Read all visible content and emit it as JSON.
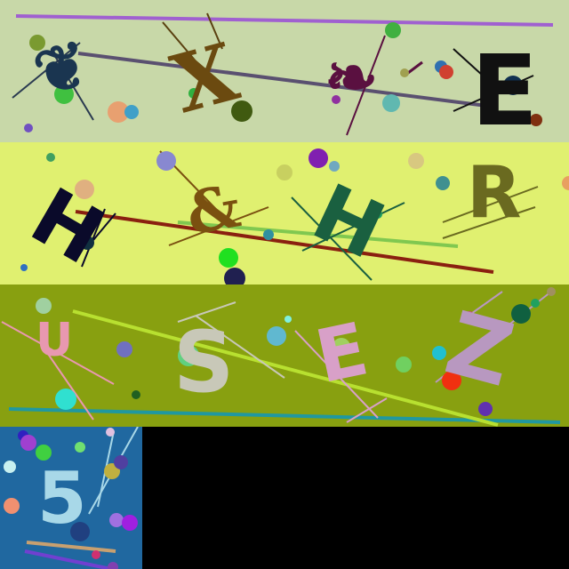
{
  "tiles": [
    {
      "background": "#c8d8a8",
      "glyphs": [
        {
          "text": "❦",
          "color": "#1a3550"
        },
        {
          "text": "X",
          "color": "#6b4a10"
        },
        {
          "text": "❧",
          "color": "#5a1040"
        },
        {
          "text": "E",
          "color": "#111111"
        }
      ]
    },
    {
      "background": "#e0f070",
      "glyphs": [
        {
          "text": "H",
          "color": "#0a0a2a"
        },
        {
          "text": "&",
          "color": "#7a5010"
        },
        {
          "text": "H",
          "color": "#1a6040"
        },
        {
          "text": "R",
          "color": "#6a6a20"
        }
      ]
    },
    {
      "background": "#88a010",
      "glyphs": [
        {
          "text": "U",
          "color": "#e898b0"
        },
        {
          "text": "S",
          "color": "#c8c8b8"
        },
        {
          "text": "E",
          "color": "#d8a0c8"
        },
        {
          "text": "Z",
          "color": "#b898c0"
        }
      ]
    },
    {
      "background": "#2068a0",
      "glyphs": [
        {
          "text": "5",
          "color": "#a8d8e8"
        }
      ]
    }
  ]
}
